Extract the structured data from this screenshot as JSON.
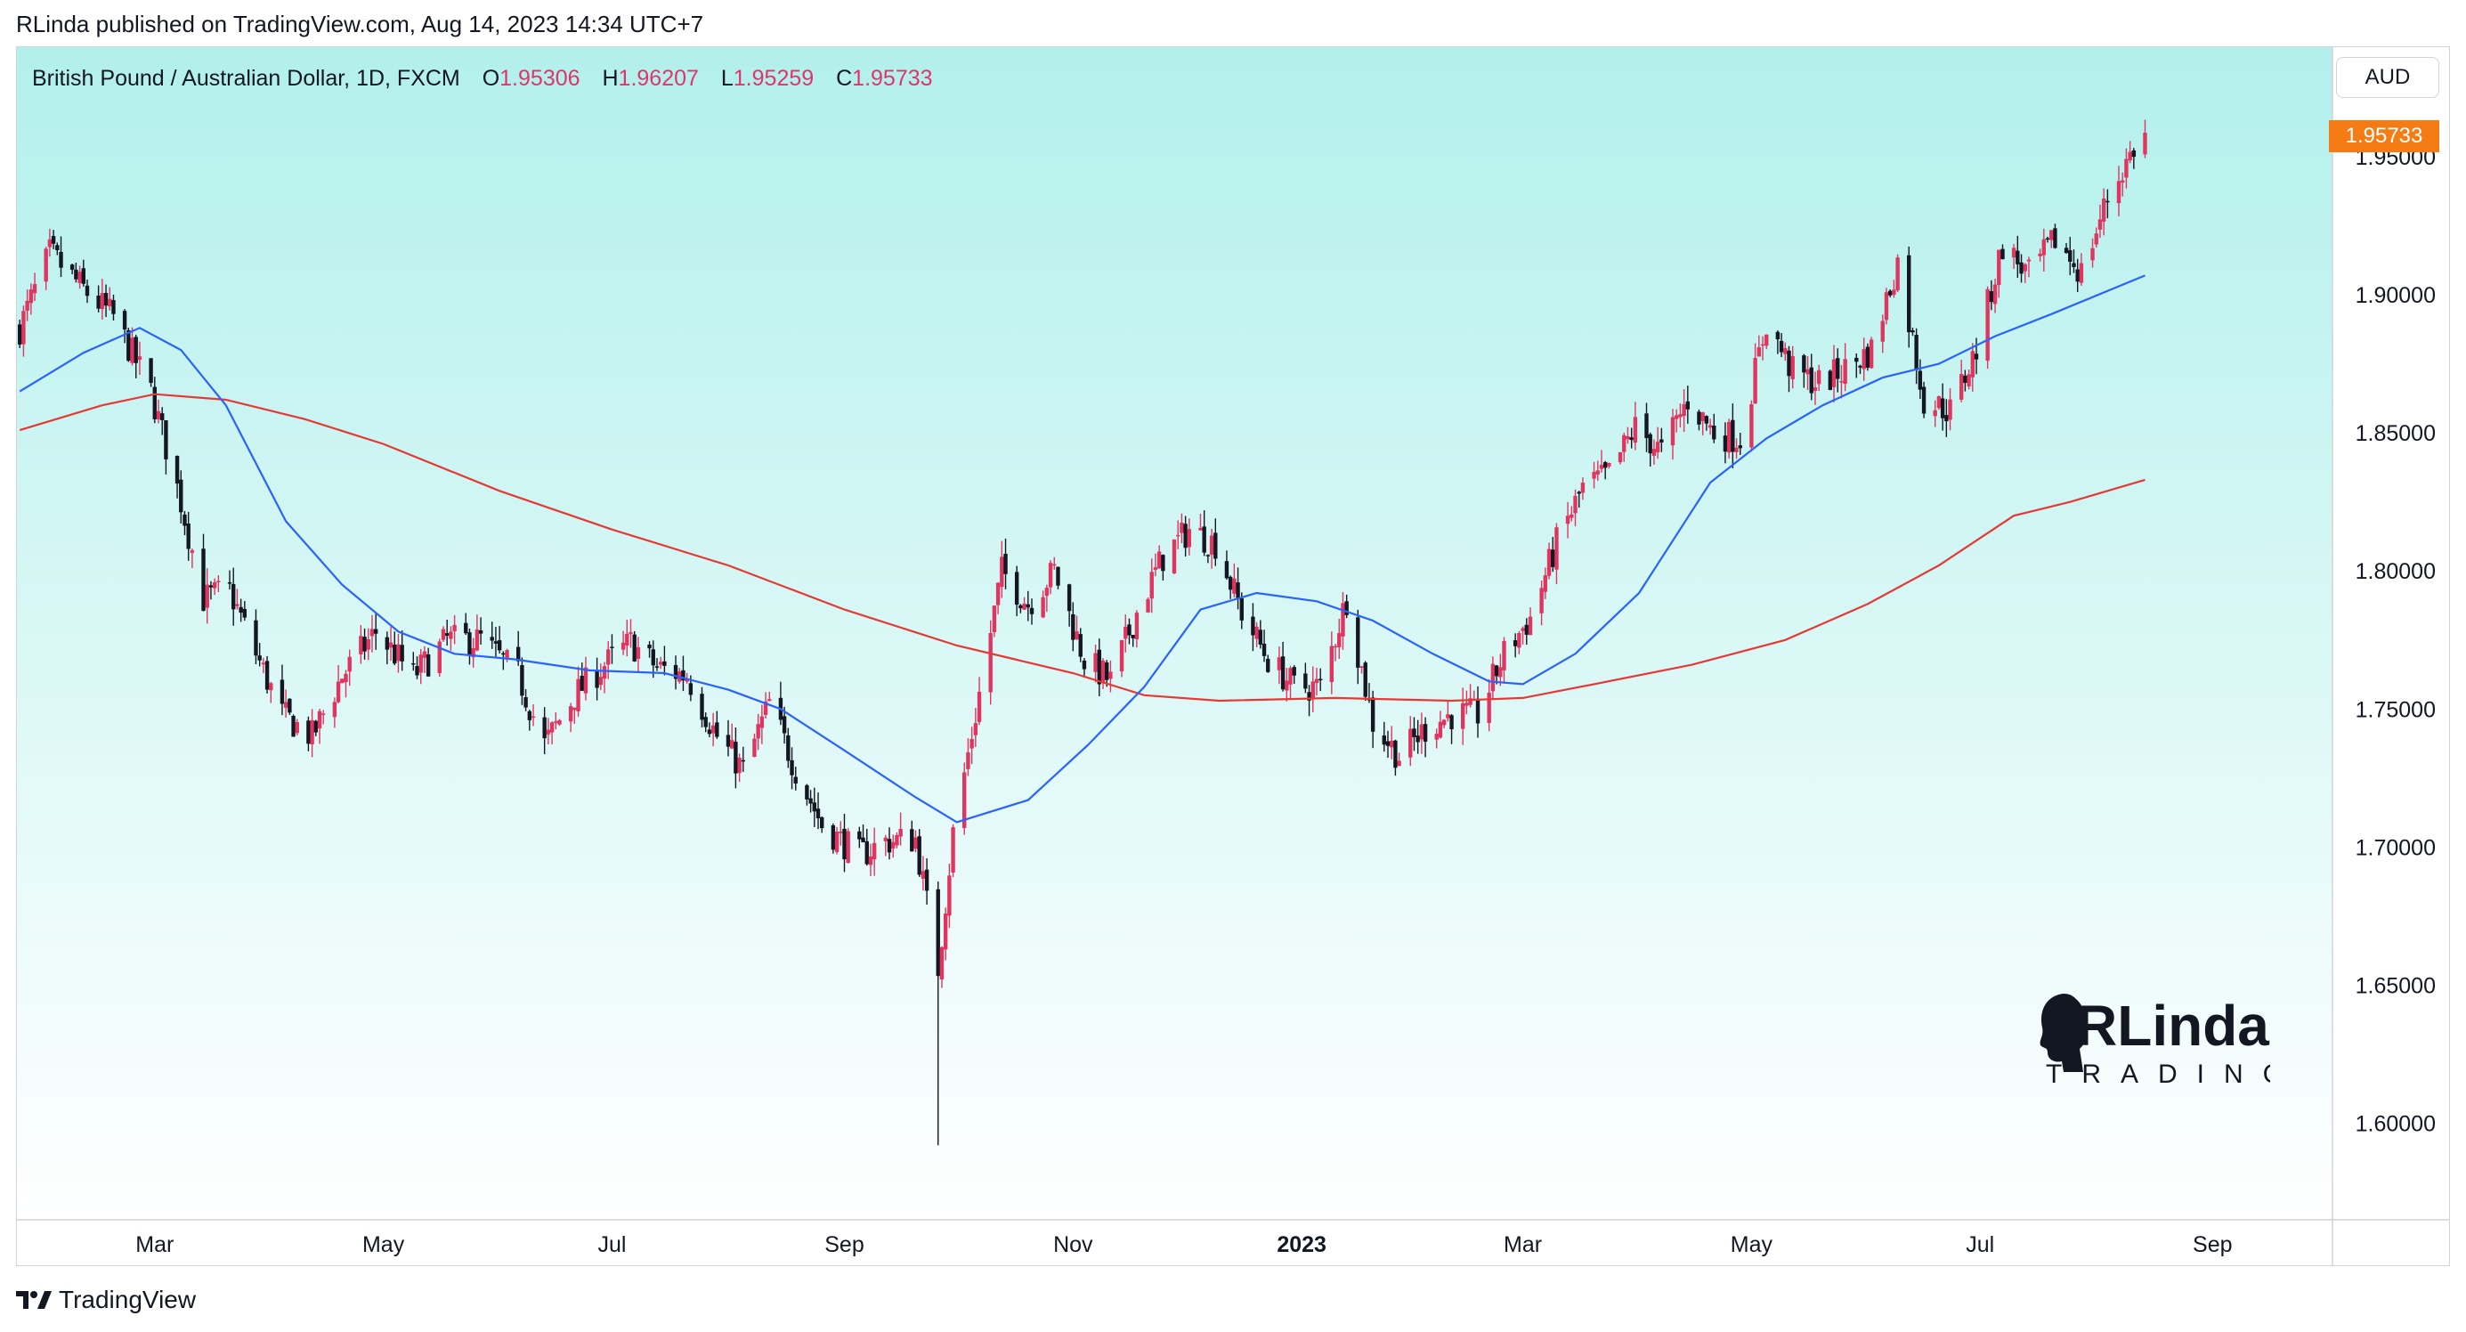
{
  "header": {
    "published_by": "RLinda published on TradingView.com, Aug 14, 2023 14:34 UTC+7"
  },
  "legend": {
    "symbol": "British Pound / Australian Dollar, 1D, FXCM",
    "open_label": "O",
    "open": "1.95306",
    "high_label": "H",
    "high": "1.96207",
    "low_label": "L",
    "low": "1.95259",
    "close_label": "C",
    "close": "1.95733"
  },
  "currency_button": "AUD",
  "last_price_tag": "1.95733",
  "logo": {
    "line1": "RLinda",
    "line2": "TRADING"
  },
  "footer": {
    "brand": "TradingView"
  },
  "colors": {
    "bg_top": "#b2f0ec",
    "bg_bottom": "#ffffff",
    "bull_candle": "#e0355f",
    "bear_candle": "#131722",
    "ma_fast": "#2962ff",
    "ma_slow": "#e53935",
    "price_tag": "#f57c14"
  },
  "chart_data": {
    "type": "candlestick",
    "timeframe": "1D",
    "ylim": [
      1.565,
      1.99
    ],
    "y_ticks": [
      "1.95000",
      "1.90000",
      "1.85000",
      "1.80000",
      "1.75000",
      "1.70000",
      "1.65000",
      "1.60000"
    ],
    "x_ticks": [
      {
        "label": "Mar",
        "date": "2022-03-01",
        "bold": false
      },
      {
        "label": "May",
        "date": "2022-05-01",
        "bold": false
      },
      {
        "label": "Jul",
        "date": "2022-07-01",
        "bold": false
      },
      {
        "label": "Sep",
        "date": "2022-09-01",
        "bold": false
      },
      {
        "label": "Nov",
        "date": "2022-11-01",
        "bold": false
      },
      {
        "label": "2023",
        "date": "2023-01-01",
        "bold": true
      },
      {
        "label": "Mar",
        "date": "2023-03-01",
        "bold": false
      },
      {
        "label": "May",
        "date": "2023-05-01",
        "bold": false
      },
      {
        "label": "Jul",
        "date": "2023-07-01",
        "bold": false
      },
      {
        "label": "Sep",
        "date": "2023-09-01",
        "bold": false
      }
    ],
    "x_range": [
      "2022-01-23",
      "2023-10-03"
    ],
    "close_path": [
      [
        "2022-01-24",
        1.888
      ],
      [
        "2022-02-01",
        1.915
      ],
      [
        "2022-02-10",
        1.902
      ],
      [
        "2022-02-18",
        1.892
      ],
      [
        "2022-02-28",
        1.865
      ],
      [
        "2022-03-08",
        1.825
      ],
      [
        "2022-03-14",
        1.79
      ],
      [
        "2022-03-21",
        1.793
      ],
      [
        "2022-03-28",
        1.77
      ],
      [
        "2022-04-04",
        1.748
      ],
      [
        "2022-04-12",
        1.74
      ],
      [
        "2022-04-20",
        1.762
      ],
      [
        "2022-04-29",
        1.778
      ],
      [
        "2022-05-09",
        1.762
      ],
      [
        "2022-05-18",
        1.775
      ],
      [
        "2022-05-27",
        1.775
      ],
      [
        "2022-06-06",
        1.762
      ],
      [
        "2022-06-13",
        1.737
      ],
      [
        "2022-06-21",
        1.755
      ],
      [
        "2022-06-29",
        1.766
      ],
      [
        "2022-07-06",
        1.774
      ],
      [
        "2022-07-13",
        1.765
      ],
      [
        "2022-07-21",
        1.762
      ],
      [
        "2022-07-29",
        1.74
      ],
      [
        "2022-08-05",
        1.728
      ],
      [
        "2022-08-12",
        1.752
      ],
      [
        "2022-08-19",
        1.728
      ],
      [
        "2022-08-26",
        1.708
      ],
      [
        "2022-09-05",
        1.697
      ],
      [
        "2022-09-12",
        1.702
      ],
      [
        "2022-09-20",
        1.703
      ],
      [
        "2022-09-26",
        1.656
      ],
      [
        "2022-09-30",
        1.705
      ],
      [
        "2022-10-06",
        1.748
      ],
      [
        "2022-10-13",
        1.8
      ],
      [
        "2022-10-20",
        1.788
      ],
      [
        "2022-10-27",
        1.8
      ],
      [
        "2022-11-04",
        1.768
      ],
      [
        "2022-11-11",
        1.76
      ],
      [
        "2022-11-18",
        1.785
      ],
      [
        "2022-11-25",
        1.805
      ],
      [
        "2022-12-02",
        1.815
      ],
      [
        "2022-12-09",
        1.81
      ],
      [
        "2022-12-16",
        1.785
      ],
      [
        "2022-12-23",
        1.768
      ],
      [
        "2022-12-30",
        1.758
      ],
      [
        "2023-01-06",
        1.758
      ],
      [
        "2023-01-13",
        1.79
      ],
      [
        "2023-01-20",
        1.745
      ],
      [
        "2023-01-27",
        1.733
      ],
      [
        "2023-02-03",
        1.743
      ],
      [
        "2023-02-10",
        1.748
      ],
      [
        "2023-02-17",
        1.748
      ],
      [
        "2023-02-24",
        1.77
      ],
      [
        "2023-03-03",
        1.783
      ],
      [
        "2023-03-10",
        1.81
      ],
      [
        "2023-03-17",
        1.83
      ],
      [
        "2023-03-24",
        1.835
      ],
      [
        "2023-03-31",
        1.852
      ],
      [
        "2023-04-07",
        1.843
      ],
      [
        "2023-04-14",
        1.862
      ],
      [
        "2023-04-21",
        1.85
      ],
      [
        "2023-04-28",
        1.848
      ],
      [
        "2023-05-05",
        1.89
      ],
      [
        "2023-05-12",
        1.872
      ],
      [
        "2023-05-19",
        1.868
      ],
      [
        "2023-05-26",
        1.873
      ],
      [
        "2023-06-02",
        1.88
      ],
      [
        "2023-06-09",
        1.912
      ],
      [
        "2023-06-16",
        1.862
      ],
      [
        "2023-06-23",
        1.858
      ],
      [
        "2023-06-30",
        1.88
      ],
      [
        "2023-07-07",
        1.918
      ],
      [
        "2023-07-14",
        1.907
      ],
      [
        "2023-07-21",
        1.92
      ],
      [
        "2023-07-28",
        1.908
      ],
      [
        "2023-08-04",
        1.935
      ],
      [
        "2023-08-11",
        1.953
      ],
      [
        "2023-08-14",
        1.957
      ]
    ],
    "series": [
      {
        "name": "",
        "kind": "ma_fast",
        "points": [
          [
            "2022-01-24",
            1.865
          ],
          [
            "2022-02-10",
            1.879
          ],
          [
            "2022-02-25",
            1.888
          ],
          [
            "2022-03-08",
            1.88
          ],
          [
            "2022-03-20",
            1.86
          ],
          [
            "2022-04-05",
            1.818
          ],
          [
            "2022-04-20",
            1.795
          ],
          [
            "2022-05-05",
            1.778
          ],
          [
            "2022-05-20",
            1.77
          ],
          [
            "2022-06-05",
            1.768
          ],
          [
            "2022-06-25",
            1.764
          ],
          [
            "2022-07-15",
            1.763
          ],
          [
            "2022-08-01",
            1.757
          ],
          [
            "2022-08-15",
            1.75
          ],
          [
            "2022-09-01",
            1.735
          ],
          [
            "2022-09-20",
            1.718
          ],
          [
            "2022-10-01",
            1.709
          ],
          [
            "2022-10-20",
            1.717
          ],
          [
            "2022-11-05",
            1.737
          ],
          [
            "2022-11-20",
            1.758
          ],
          [
            "2022-12-05",
            1.786
          ],
          [
            "2022-12-20",
            1.792
          ],
          [
            "2023-01-05",
            1.789
          ],
          [
            "2023-01-20",
            1.782
          ],
          [
            "2023-02-05",
            1.77
          ],
          [
            "2023-02-20",
            1.76
          ],
          [
            "2023-03-01",
            1.759
          ],
          [
            "2023-03-15",
            1.77
          ],
          [
            "2023-04-01",
            1.792
          ],
          [
            "2023-04-20",
            1.832
          ],
          [
            "2023-05-05",
            1.848
          ],
          [
            "2023-05-20",
            1.86
          ],
          [
            "2023-06-05",
            1.87
          ],
          [
            "2023-06-20",
            1.875
          ],
          [
            "2023-07-05",
            1.885
          ],
          [
            "2023-07-20",
            1.893
          ],
          [
            "2023-08-14",
            1.907
          ]
        ]
      },
      {
        "name": "",
        "kind": "ma_slow",
        "points": [
          [
            "2022-01-24",
            1.851
          ],
          [
            "2022-02-15",
            1.86
          ],
          [
            "2022-03-01",
            1.864
          ],
          [
            "2022-03-20",
            1.862
          ],
          [
            "2022-04-10",
            1.855
          ],
          [
            "2022-05-01",
            1.846
          ],
          [
            "2022-06-01",
            1.829
          ],
          [
            "2022-07-01",
            1.815
          ],
          [
            "2022-08-01",
            1.802
          ],
          [
            "2022-09-01",
            1.786
          ],
          [
            "2022-10-01",
            1.773
          ],
          [
            "2022-11-01",
            1.763
          ],
          [
            "2022-11-20",
            1.755
          ],
          [
            "2022-12-10",
            1.753
          ],
          [
            "2023-01-10",
            1.754
          ],
          [
            "2023-02-10",
            1.753
          ],
          [
            "2023-03-01",
            1.754
          ],
          [
            "2023-03-20",
            1.759
          ],
          [
            "2023-04-15",
            1.766
          ],
          [
            "2023-05-10",
            1.775
          ],
          [
            "2023-06-01",
            1.788
          ],
          [
            "2023-06-20",
            1.802
          ],
          [
            "2023-07-10",
            1.82
          ],
          [
            "2023-07-25",
            1.825
          ],
          [
            "2023-08-14",
            1.833
          ]
        ]
      }
    ],
    "annotations": {
      "sep_spike_low": {
        "date": "2022-09-26",
        "value": 1.592
      },
      "last_close": 1.95733
    }
  }
}
